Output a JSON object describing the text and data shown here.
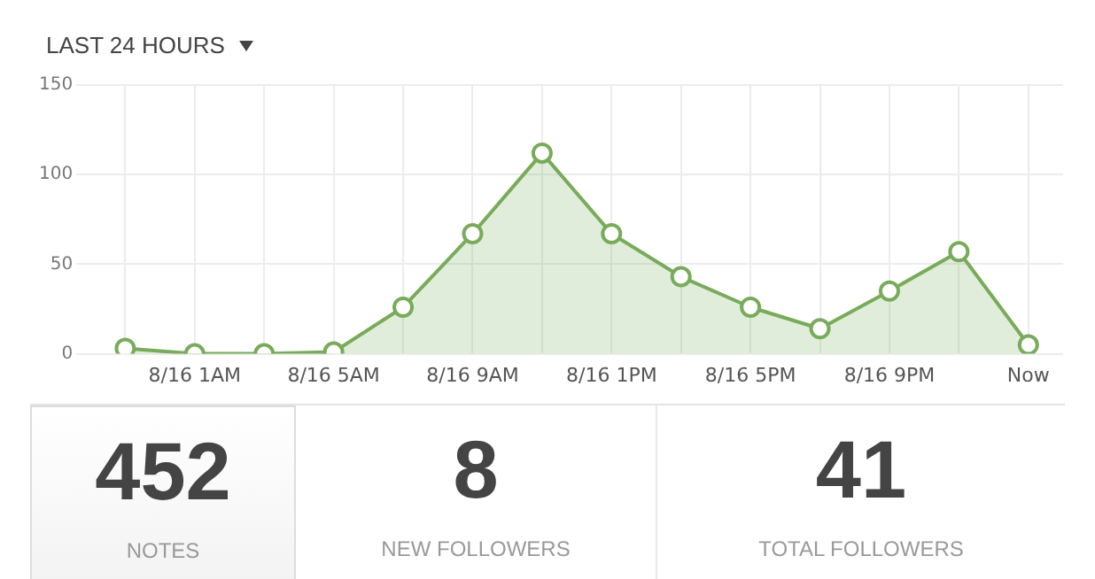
{
  "chart_data": {
    "type": "area",
    "title": "LAST 24 HOURS",
    "categories": [
      null,
      "8/16 1AM",
      null,
      "8/16 5AM",
      null,
      "8/16 9AM",
      null,
      "8/16 1PM",
      null,
      "8/16 5PM",
      null,
      "8/16 9PM",
      null,
      "Now"
    ],
    "series": [
      {
        "color": "#78ab5a",
        "values": [
          3,
          0,
          0,
          1,
          26,
          67,
          112,
          67,
          43,
          26,
          14,
          35,
          57,
          5
        ]
      }
    ],
    "ylim": [
      0,
      150
    ],
    "yticks": [
      0,
      50,
      100,
      150
    ],
    "grid": true,
    "marker": "circle",
    "line_style": "solid",
    "annotations": [
      "452",
      "NOTES",
      "8",
      "NEW FOLLOWERS",
      "41",
      "TOTAL FOLLOWERS"
    ]
  }
}
